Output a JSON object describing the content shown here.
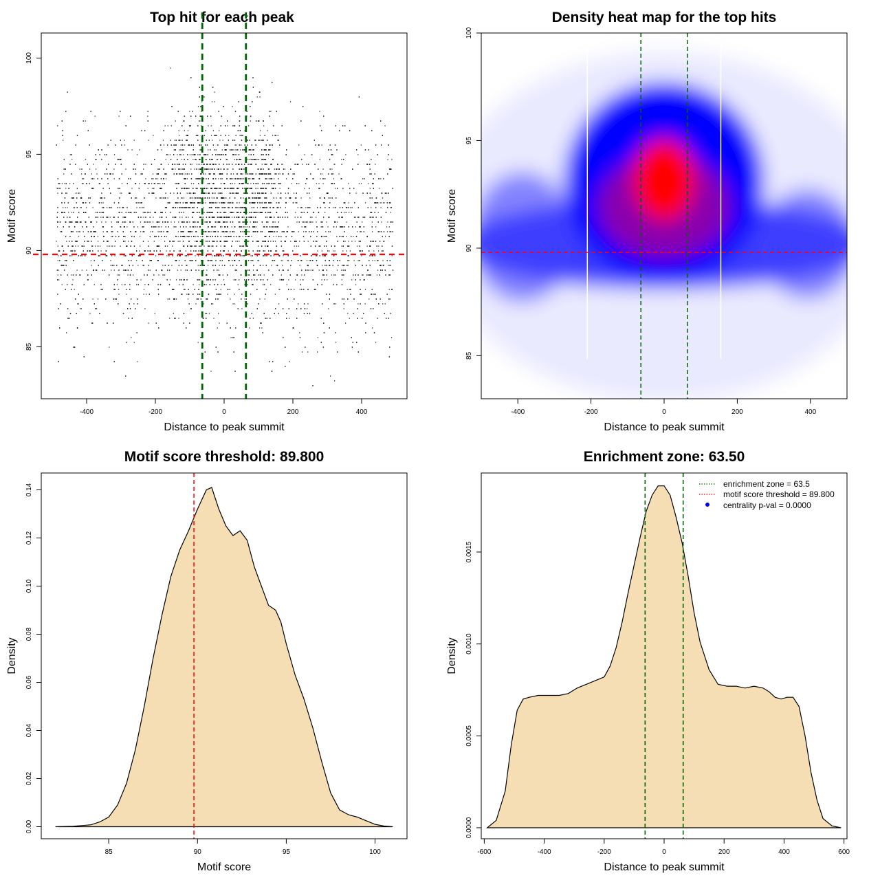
{
  "chart_data": [
    {
      "type": "scatter",
      "title": "Top hit for each peak",
      "xlabel": "Distance to peak summit",
      "ylabel": "Motif score",
      "xlim": [
        -532,
        532
      ],
      "ylim": [
        82.3,
        101.3
      ],
      "xticks": [
        -400,
        -200,
        0,
        200,
        400
      ],
      "yticks": [
        85,
        90,
        95,
        100
      ],
      "point_distribution": {
        "n_points_approx": 9000,
        "x_range": [
          -490,
          490
        ],
        "y_range": [
          83,
          100
        ],
        "score_step": 0.25,
        "center_boost_x_range": [
          -160,
          160
        ]
      },
      "threshold_hline": 89.8,
      "threshold_color": "#ff0000",
      "zone_vlines": [
        -63.5,
        63.5
      ],
      "zone_color": "#006400",
      "grid": false
    },
    {
      "type": "heatmap",
      "title": "Density heat map for the top hits",
      "xlabel": "Distance to peak summit",
      "ylabel": "Motif score",
      "xlim": [
        -500,
        500
      ],
      "ylim": [
        83,
        100
      ],
      "xticks": [
        -400,
        -200,
        0,
        200,
        400
      ],
      "yticks": [
        85,
        90,
        95,
        100
      ],
      "colormap": [
        "#ffffff",
        "#0000ff",
        "#ff0000"
      ],
      "density_peak": {
        "x": 5,
        "y": 93
      },
      "threshold_hline": 89.8,
      "threshold_color": "#ff0000",
      "zone_vlines": [
        -63.5,
        63.5
      ],
      "zone_color": "#006400",
      "white_vlines": [
        -210,
        155
      ]
    },
    {
      "type": "area",
      "title": "Motif score threshold: 89.800",
      "xlabel": "Motif score",
      "ylabel": "Density",
      "xlim": [
        81.2,
        101.8
      ],
      "ylim": [
        -0.005,
        0.147
      ],
      "xticks": [
        85,
        90,
        95,
        100
      ],
      "yticks": [
        0.0,
        0.02,
        0.04,
        0.06,
        0.08,
        0.1,
        0.12,
        0.14
      ],
      "fill_color": "#f5deb3",
      "x": [
        82,
        83,
        84,
        84.5,
        85,
        85.5,
        86,
        86.5,
        87,
        87.5,
        88,
        88.5,
        89,
        89.5,
        90,
        90.5,
        90.8,
        91.2,
        91.6,
        92,
        92.4,
        92.8,
        93.2,
        93.6,
        94,
        94.4,
        94.7,
        95,
        95.5,
        96,
        96.5,
        97,
        97.5,
        98,
        98.5,
        99,
        99.5,
        100,
        100.5,
        101
      ],
      "y": [
        0,
        0.0002,
        0.0008,
        0.002,
        0.004,
        0.009,
        0.018,
        0.032,
        0.05,
        0.07,
        0.088,
        0.104,
        0.115,
        0.123,
        0.132,
        0.14,
        0.141,
        0.132,
        0.125,
        0.121,
        0.123,
        0.119,
        0.108,
        0.1,
        0.092,
        0.09,
        0.085,
        0.076,
        0.063,
        0.053,
        0.041,
        0.027,
        0.014,
        0.007,
        0.005,
        0.004,
        0.0025,
        0.001,
        0.0003,
        0
      ],
      "threshold_vline": 89.8,
      "threshold_color": "#ff0000",
      "grid": false
    },
    {
      "type": "area",
      "title": "Enrichment zone: 63.50",
      "xlabel": "Distance to peak summit",
      "ylabel": "Density",
      "xlim": [
        -610,
        610
      ],
      "ylim": [
        -6e-05,
        0.00193
      ],
      "xticks": [
        -600,
        -400,
        -200,
        0,
        200,
        400,
        600
      ],
      "yticks": [
        0.0,
        0.0005,
        0.001,
        0.0015
      ],
      "ytick_labels": [
        "0.0000",
        "0.0005",
        "0.0010",
        "0.0015"
      ],
      "fill_color": "#f5deb3",
      "x": [
        -590,
        -560,
        -530,
        -510,
        -490,
        -470,
        -450,
        -420,
        -390,
        -350,
        -320,
        -290,
        -260,
        -230,
        -200,
        -180,
        -160,
        -140,
        -120,
        -100,
        -80,
        -60,
        -40,
        -20,
        0,
        20,
        40,
        60,
        80,
        100,
        120,
        150,
        180,
        210,
        240,
        270,
        300,
        330,
        350,
        370,
        390,
        410,
        430,
        450,
        470,
        490,
        510,
        530,
        560,
        590
      ],
      "y": [
        0,
        4e-05,
        0.0002,
        0.00045,
        0.00064,
        0.0007,
        0.00071,
        0.00072,
        0.00072,
        0.00072,
        0.00073,
        0.00076,
        0.00078,
        0.0008,
        0.00082,
        0.00088,
        0.00098,
        0.00112,
        0.00128,
        0.00143,
        0.00158,
        0.00172,
        0.00181,
        0.00186,
        0.00186,
        0.00181,
        0.00169,
        0.00155,
        0.00137,
        0.00117,
        0.00101,
        0.00086,
        0.00078,
        0.00077,
        0.00077,
        0.00076,
        0.00077,
        0.00076,
        0.00074,
        0.00071,
        0.0007,
        0.00071,
        0.00071,
        0.00066,
        0.0005,
        0.0003,
        0.00015,
        5e-05,
        1e-05,
        0
      ],
      "zone_vlines": [
        -63.5,
        63.5
      ],
      "zone_color": "#006400",
      "legend_position": "top-right",
      "legend": [
        {
          "label": "enrichment zone = 63.5",
          "style": "dotted-line",
          "color": "#006400"
        },
        {
          "label": "motif score threshold = 89.800",
          "style": "dotted-line",
          "color": "#ff0000"
        },
        {
          "label": "centrality p-val = 0.0000",
          "style": "dot",
          "color": "#0000ff"
        }
      ]
    }
  ]
}
